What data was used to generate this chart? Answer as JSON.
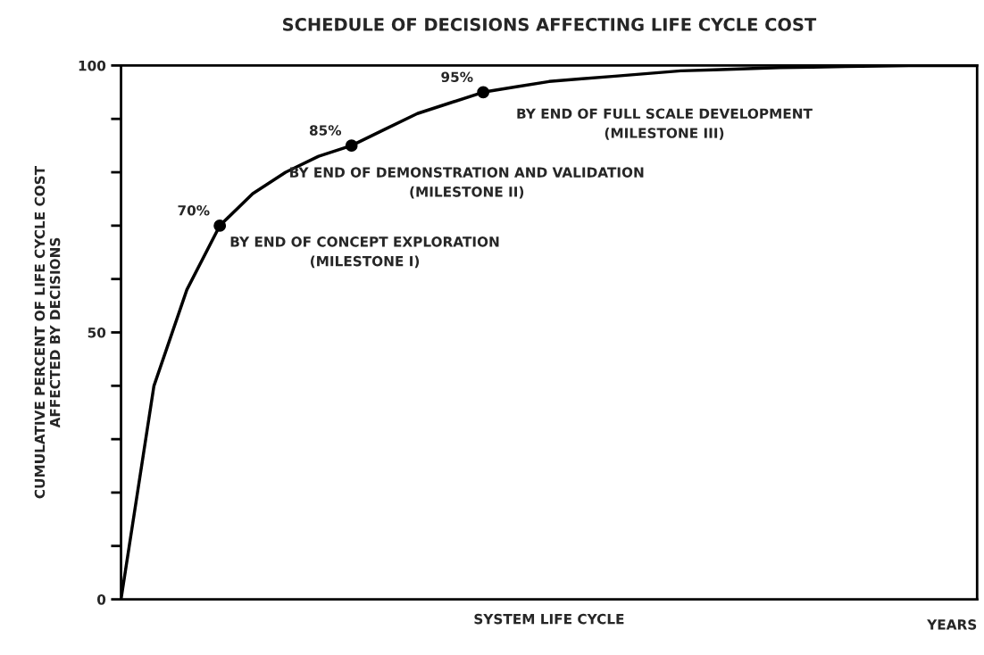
{
  "chart_data": {
    "type": "line",
    "title": "SCHEDULE OF DECISIONS AFFECTING LIFE CYCLE COST",
    "xlabel": "SYSTEM LIFE CYCLE",
    "ylabel": "CUMULATIVE PERCENT OF LIFE CYCLE COST\nAFFECTED BY DECISIONS",
    "categories": [
      null,
      null,
      null,
      null,
      null,
      null,
      null,
      null,
      null,
      null,
      null,
      null,
      null,
      null,
      null,
      null,
      null,
      null,
      null,
      null,
      null,
      null,
      null,
      null,
      null,
      null,
      null
    ],
    "series": [
      {
        "type": "line",
        "color": "#000000",
        "marker": "none",
        "values": [
          0,
          40,
          58,
          70,
          76,
          80,
          83,
          85,
          88,
          91,
          93,
          95,
          96,
          97,
          97.5,
          98,
          98.5,
          99,
          99.2,
          99.4,
          99.6,
          99.7,
          99.8,
          99.9,
          100,
          100,
          100
        ]
      },
      {
        "type": "scatter",
        "color": "#000000",
        "marker": "circle",
        "values": [
          null,
          null,
          null,
          70,
          null,
          null,
          null,
          85,
          null,
          null,
          null,
          95,
          null,
          null,
          null,
          null,
          null,
          null,
          null,
          null,
          null,
          null,
          null,
          null,
          null,
          null,
          null
        ],
        "value_labels": [
          null,
          null,
          null,
          "70%",
          null,
          null,
          null,
          "85%",
          null,
          null,
          null,
          "95%",
          null,
          null,
          null,
          null,
          null,
          null,
          null,
          null,
          null,
          null,
          null,
          null,
          null,
          null,
          null
        ]
      }
    ],
    "ylim": [
      0,
      100
    ],
    "yticks": [
      0,
      {
        "value": 10,
        "label": null
      },
      {
        "value": 20,
        "label": null
      },
      {
        "value": 30,
        "label": null
      },
      {
        "value": 40,
        "label": null
      },
      50,
      {
        "value": 60,
        "label": null
      },
      {
        "value": 70,
        "label": null
      },
      {
        "value": 80,
        "label": null
      },
      {
        "value": 90,
        "label": null
      },
      100
    ],
    "grid": false,
    "legend": false,
    "annotations": [
      "BY END OF CONCEPT EXPLORATION\n(MILESTONE I)",
      "BY END OF DEMONSTRATION AND VALIDATION\n(MILESTONE II)",
      "BY END OF FULL SCALE DEVELOPMENT\n(MILESTONE III)",
      "YEARS"
    ]
  }
}
